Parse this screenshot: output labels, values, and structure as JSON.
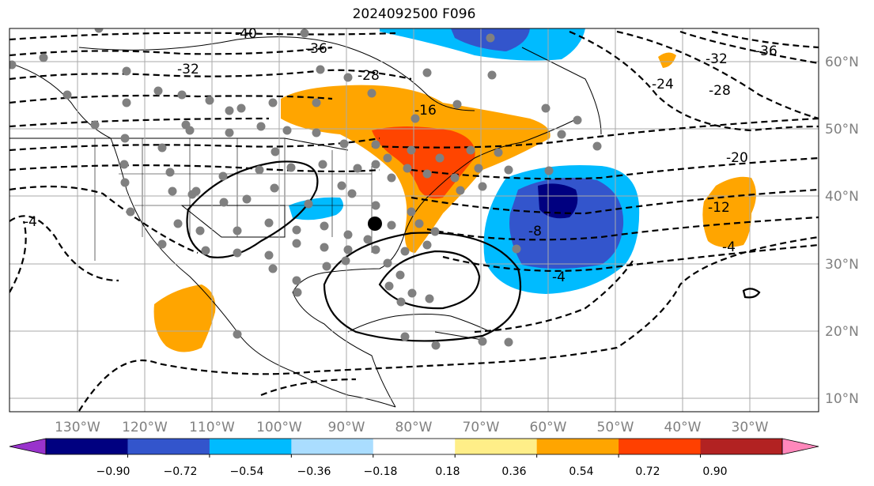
{
  "title": "2024092500 F096",
  "longitude_labels": [
    "130°W",
    "120°W",
    "110°W",
    "100°W",
    "90°W",
    "80°W",
    "70°W",
    "60°W",
    "50°W",
    "40°W",
    "30°W"
  ],
  "latitude_labels": [
    "60°N",
    "50°N",
    "40°N",
    "30°N",
    "20°N",
    "10°N"
  ],
  "colorbar": {
    "ticks": [
      "−0.90",
      "−0.72",
      "−0.54",
      "−0.36",
      "−0.18",
      "0.18",
      "0.36",
      "0.54",
      "0.72",
      "0.90"
    ],
    "colors": [
      "#9933cc",
      "#000080",
      "#3355cc",
      "#00bbff",
      "#aaddff",
      "#ffffff",
      "#ffee88",
      "#ffa500",
      "#ff4000",
      "#b22222",
      "#ff88bb"
    ]
  },
  "contour_labels": [
    "-40",
    "-36",
    "-32",
    "-28",
    "-16",
    "-36",
    "-32",
    "-28",
    "-24",
    "-20",
    "-12",
    "-8",
    "-4",
    "-4",
    "-4"
  ],
  "fill_colors": {
    "warm": "#ffa500",
    "hot": "#ff4500",
    "cool": "#00bbff",
    "cold": "#3355cc",
    "coldest": "#000080",
    "light": "#aaddff"
  }
}
